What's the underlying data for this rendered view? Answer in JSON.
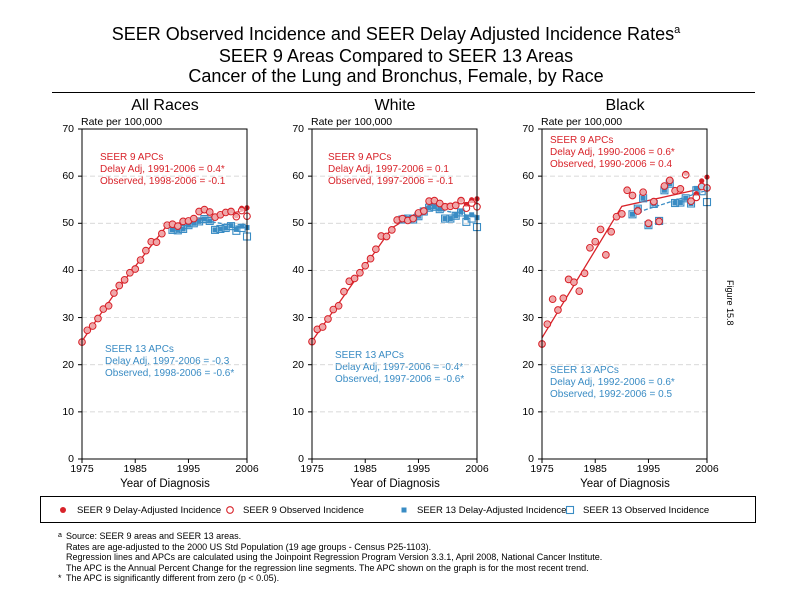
{
  "title_lines": [
    "SEER Observed Incidence and SEER Delay Adjusted Incidence Rates",
    "SEER 9 Areas Compared to SEER 13 Areas",
    "Cancer of the Lung and Bronchus, Female, by Race"
  ],
  "title_superscript": "a",
  "figure_label": "Figure 15.8",
  "colors": {
    "seer9": "#d8232a",
    "seer13": "#3a8cc4"
  },
  "legend": [
    {
      "label": "SEER 9 Delay-Adjusted Incidence",
      "marker": "filled-circle",
      "color": "#d8232a"
    },
    {
      "label": "SEER 9 Observed Incidence",
      "marker": "open-circle",
      "color": "#d8232a"
    },
    {
      "label": "SEER 13 Delay-Adjusted Incidence",
      "marker": "filled-square",
      "color": "#3a8cc4"
    },
    {
      "label": "SEER 13 Observed Incidence",
      "marker": "open-square",
      "color": "#3a8cc4"
    }
  ],
  "footnotes": {
    "a_marker": "a",
    "a_lines": [
      "Source: SEER 9 areas and SEER 13 areas.",
      "Rates are age-adjusted to the 2000 US Std Population (19 age groups - Census P25-1103).",
      "Regression lines and APCs are calculated using the Joinpoint Regression Program Version 3.3.1, April 2008, National Cancer Institute.",
      "The APC is the Annual Percent Change for the regression line segments. The APC shown on the graph is for the most recent trend."
    ],
    "star_marker": "*",
    "star_line": "The APC is significantly different from zero (p < 0.05)."
  },
  "chart_data": [
    {
      "type": "scatter",
      "title": "All Races",
      "ylabel": "Rate per 100,000",
      "xlabel": "Year of Diagnosis",
      "xlim": [
        1975,
        2006
      ],
      "ylim": [
        0,
        70
      ],
      "xticks": [
        "1975",
        "1985",
        "1995",
        "2006"
      ],
      "yticks": [
        "0",
        "10",
        "20",
        "30",
        "40",
        "50",
        "60",
        "70"
      ],
      "grid": "horizontal-dashed",
      "seer9_apc": {
        "header": "SEER 9 APCs",
        "delay": "Delay Adj, 1991-2006 = 0.4*",
        "observed": "Observed, 1998-2006 = -0.1"
      },
      "seer13_apc": {
        "header": "SEER 13 APCs",
        "delay": "Delay Adj, 1997-2006 = -0.3",
        "observed": "Observed, 1998-2006 = -0.6*"
      },
      "seer9_start": 1975,
      "seer13_start": 1992,
      "seer9_delay": [
        24.8,
        27.3,
        28.2,
        29.8,
        31.8,
        32.5,
        35.2,
        36.8,
        38.0,
        39.5,
        40.3,
        42.2,
        44.2,
        46.1,
        46.0,
        47.8,
        49.6,
        49.8,
        49.4,
        50.4,
        50.5,
        51.0,
        52.5,
        52.9,
        52.4,
        51.3,
        51.8,
        52.3,
        52.6,
        51.6,
        53.2,
        53.3
      ],
      "seer9_observed": [
        24.8,
        27.3,
        28.2,
        29.8,
        31.8,
        32.5,
        35.2,
        36.8,
        38.0,
        39.5,
        40.3,
        42.2,
        44.2,
        46.1,
        46.0,
        47.8,
        49.6,
        49.8,
        49.4,
        50.4,
        50.5,
        51.0,
        52.5,
        52.9,
        52.4,
        51.3,
        51.8,
        52.3,
        52.5,
        51.4,
        52.7,
        51.5
      ],
      "seer13_delay": [
        48.6,
        48.5,
        48.8,
        49.6,
        50.0,
        50.4,
        50.9,
        50.5,
        48.6,
        48.8,
        49.0,
        49.5,
        48.7,
        49.4,
        49.1
      ],
      "seer13_observed": [
        48.6,
        48.5,
        48.8,
        49.6,
        50.0,
        50.4,
        50.9,
        50.5,
        48.6,
        48.8,
        49.0,
        49.4,
        48.4,
        49.0,
        47.2
      ],
      "seer9_trend": [
        [
          1975,
          25.0
        ],
        [
          1982,
          36.5
        ],
        [
          1991,
          49.6
        ],
        [
          2006,
          52.8
        ]
      ],
      "seer13_trend": [
        [
          1992,
          48.3
        ],
        [
          1997,
          50.8
        ],
        [
          2006,
          49.0
        ]
      ]
    },
    {
      "type": "scatter",
      "title": "White",
      "ylabel": "Rate per 100,000",
      "xlabel": "Year of Diagnosis",
      "xlim": [
        1975,
        2006
      ],
      "ylim": [
        0,
        70
      ],
      "xticks": [
        "1975",
        "1985",
        "1995",
        "2006"
      ],
      "yticks": [
        "0",
        "10",
        "20",
        "30",
        "40",
        "50",
        "60",
        "70"
      ],
      "grid": "horizontal-dashed",
      "seer9_apc": {
        "header": "SEER 9 APCs",
        "delay": "Delay Adj, 1997-2006 = 0.1",
        "observed": "Observed, 1997-2006 = -0.1"
      },
      "seer13_apc": {
        "header": "SEER 13 APCs",
        "delay": "Delay Adj, 1997-2006 = -0.4*",
        "observed": "Observed, 1997-2006 = -0.6*"
      },
      "seer9_start": 1975,
      "seer13_start": 1992,
      "seer9_delay": [
        24.9,
        27.5,
        28.0,
        29.7,
        31.7,
        32.5,
        35.5,
        37.7,
        38.3,
        39.5,
        41.0,
        42.5,
        44.5,
        47.3,
        47.2,
        48.6,
        50.7,
        51.0,
        50.6,
        51.0,
        52.2,
        52.6,
        54.7,
        54.8,
        54.2,
        53.5,
        53.6,
        53.8,
        55.0,
        54.0,
        55.0,
        55.2
      ],
      "seer9_observed": [
        24.9,
        27.5,
        28.0,
        29.7,
        31.7,
        32.5,
        35.5,
        37.7,
        38.3,
        39.5,
        41.0,
        42.5,
        44.5,
        47.3,
        47.2,
        48.6,
        50.7,
        51.0,
        50.6,
        51.0,
        52.2,
        52.6,
        54.7,
        54.8,
        54.2,
        53.5,
        53.6,
        53.8,
        54.8,
        53.2,
        54.3,
        53.5
      ],
      "seer13_delay": [
        50.8,
        51.0,
        50.8,
        51.5,
        52.5,
        53.3,
        53.5,
        53.0,
        51.0,
        51.0,
        51.6,
        52.5,
        51.2,
        51.8,
        51.2
      ],
      "seer13_observed": [
        50.8,
        51.0,
        50.8,
        51.5,
        52.5,
        53.3,
        53.5,
        53.0,
        51.0,
        51.0,
        51.6,
        52.3,
        50.3,
        51.0,
        49.2
      ],
      "seer9_trend": [
        [
          1975,
          25.0
        ],
        [
          1990,
          49.0
        ],
        [
          1997,
          53.8
        ],
        [
          2006,
          54.5
        ]
      ],
      "seer13_trend": [
        [
          1992,
          50.6
        ],
        [
          1997,
          53.3
        ],
        [
          2006,
          51.3
        ]
      ]
    },
    {
      "type": "scatter",
      "title": "Black",
      "ylabel": "Rate per 100,000",
      "xlabel": "Year of Diagnosis",
      "xlim": [
        1975,
        2006
      ],
      "ylim": [
        0,
        70
      ],
      "xticks": [
        "1975",
        "1985",
        "1995",
        "2006"
      ],
      "yticks": [
        "0",
        "10",
        "20",
        "30",
        "40",
        "50",
        "60",
        "70"
      ],
      "grid": "horizontal-dashed",
      "seer9_apc": {
        "header": "SEER 9 APCs",
        "delay": "Delay Adj, 1990-2006 = 0.6*",
        "observed": "Observed, 1990-2006 = 0.4"
      },
      "seer13_apc": {
        "header": "SEER 13 APCs",
        "delay": "Delay Adj, 1992-2006 = 0.6*",
        "observed": "Observed, 1992-2006 = 0.5"
      },
      "seer9_start": 1975,
      "seer13_start": 1992,
      "seer9_delay": [
        24.4,
        28.6,
        33.9,
        31.6,
        34.1,
        38.1,
        37.5,
        35.6,
        39.4,
        44.8,
        46.1,
        48.7,
        43.3,
        48.2,
        51.4,
        52.0,
        57.0,
        55.9,
        52.6,
        56.6,
        50.0,
        54.6,
        50.4,
        57.9,
        59.1,
        56.9,
        57.3,
        60.6,
        54.9,
        56.3,
        59.0,
        59.8
      ],
      "seer9_observed": [
        24.4,
        28.6,
        33.9,
        31.6,
        34.1,
        38.1,
        37.5,
        35.6,
        39.4,
        44.8,
        46.1,
        48.7,
        43.3,
        48.2,
        51.4,
        52.0,
        57.0,
        55.9,
        52.6,
        56.6,
        50.0,
        54.6,
        50.4,
        57.9,
        59.1,
        56.9,
        57.3,
        60.3,
        54.7,
        55.5,
        57.8,
        57.5
      ],
      "seer13_delay": [
        51.9,
        53.1,
        55.3,
        49.6,
        54.1,
        50.5,
        57.0,
        58.4,
        54.3,
        54.4,
        55.3,
        54.2,
        57.4,
        57.9,
        57.3
      ],
      "seer13_observed": [
        51.9,
        53.1,
        55.3,
        49.6,
        54.1,
        50.5,
        57.0,
        58.4,
        54.3,
        54.4,
        55.3,
        54.2,
        57.0,
        56.8,
        54.5
      ],
      "seer9_trend": [
        [
          1975,
          25.7
        ],
        [
          1990,
          53.6
        ],
        [
          2006,
          57.6
        ]
      ],
      "seer13_trend": [
        [
          1992,
          52.0
        ],
        [
          2006,
          57.0
        ]
      ]
    }
  ]
}
